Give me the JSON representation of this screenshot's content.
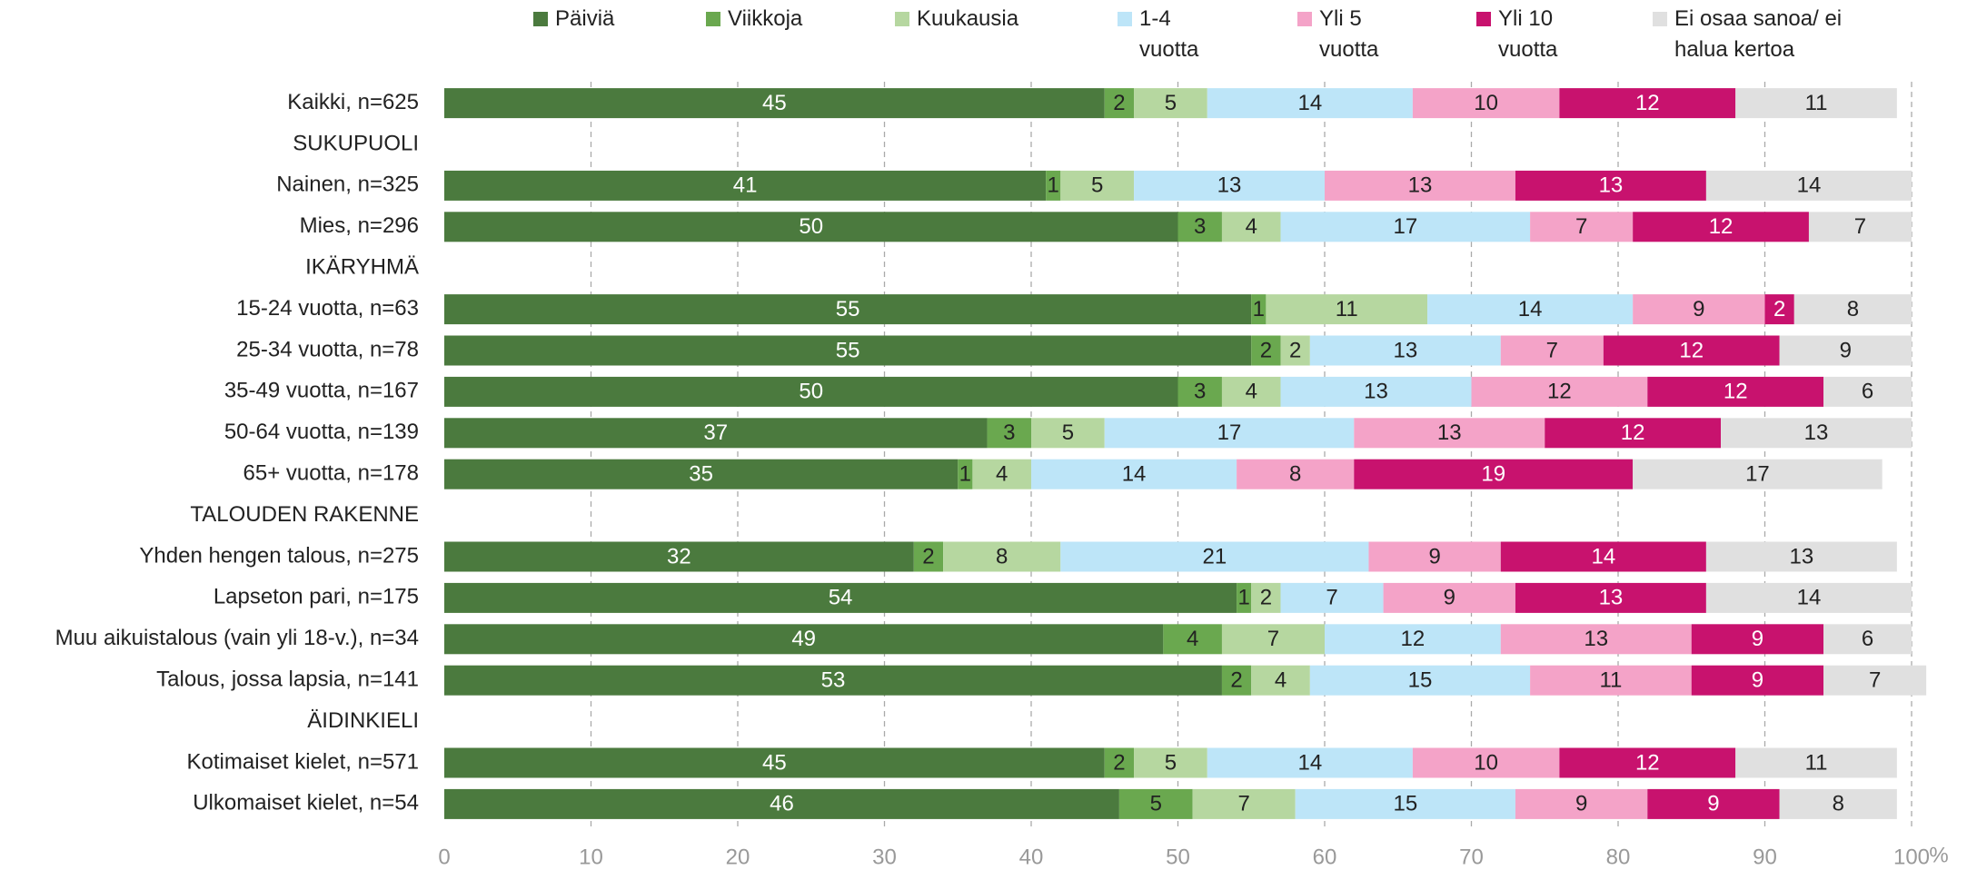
{
  "chart_data": {
    "type": "stacked-bar-horizontal",
    "x_label": "%",
    "categories": [
      "Kaikki, n=625",
      "SUKUPUOLI",
      "Nainen, n=325",
      "Mies, n=296",
      "IKÄRYHMÄ",
      "15-24 vuotta, n=63",
      "25-34 vuotta, n=78",
      "35-49 vuotta, n=167",
      "50-64 vuotta, n=139",
      "65+  vuotta, n=178",
      "TALOUDEN RAKENNE",
      "Yhden hengen talous, n=275",
      "Lapseton pari, n=175",
      "Muu aikuistalous (vain yli 18-v.), n=34",
      "Talous, jossa lapsia, n=141",
      "ÄIDINKIELI",
      "Kotimaiset kielet, n=571",
      "Ulkomaiset kielet, n=54"
    ],
    "series": [
      {
        "name": "Päiviä",
        "color": "#4b7a3e",
        "values": [
          45,
          null,
          41,
          50,
          null,
          55,
          55,
          50,
          37,
          35,
          null,
          32,
          54,
          49,
          53,
          null,
          45,
          46
        ]
      },
      {
        "name": "Viikkoja",
        "color": "#6aa84f",
        "values": [
          2,
          null,
          1,
          3,
          null,
          1,
          2,
          3,
          3,
          1,
          null,
          2,
          1,
          4,
          2,
          null,
          2,
          5
        ]
      },
      {
        "name": "Kuukausia",
        "color": "#b6d7a0",
        "values": [
          5,
          null,
          5,
          4,
          null,
          11,
          2,
          4,
          5,
          4,
          null,
          8,
          2,
          7,
          4,
          null,
          5,
          7
        ]
      },
      {
        "name": "1-4 vuotta",
        "color": "#bde5f8",
        "values": [
          14,
          null,
          13,
          17,
          null,
          14,
          13,
          13,
          17,
          14,
          null,
          21,
          7,
          12,
          15,
          null,
          14,
          15
        ]
      },
      {
        "name": "Yli 5 vuotta",
        "color": "#f4a3c8",
        "values": [
          10,
          null,
          13,
          7,
          null,
          9,
          7,
          12,
          13,
          8,
          null,
          9,
          9,
          13,
          11,
          null,
          10,
          9
        ]
      },
      {
        "name": "Yli 10 vuotta",
        "color": "#c8126e",
        "values": [
          12,
          null,
          13,
          12,
          null,
          2,
          12,
          12,
          12,
          19,
          null,
          14,
          13,
          9,
          9,
          null,
          12,
          9
        ]
      },
      {
        "name": "Ei osaa sanoa/ ei halua kertoa",
        "color": "#e0e0e0",
        "values": [
          11,
          null,
          14,
          7,
          null,
          8,
          9,
          6,
          13,
          17,
          null,
          13,
          14,
          6,
          7,
          null,
          11,
          8
        ]
      }
    ],
    "xlim": [
      0,
      100
    ],
    "xticks": [
      0,
      10,
      20,
      30,
      40,
      50,
      60,
      70,
      80,
      90,
      100
    ],
    "grid": true,
    "legend": "top"
  }
}
